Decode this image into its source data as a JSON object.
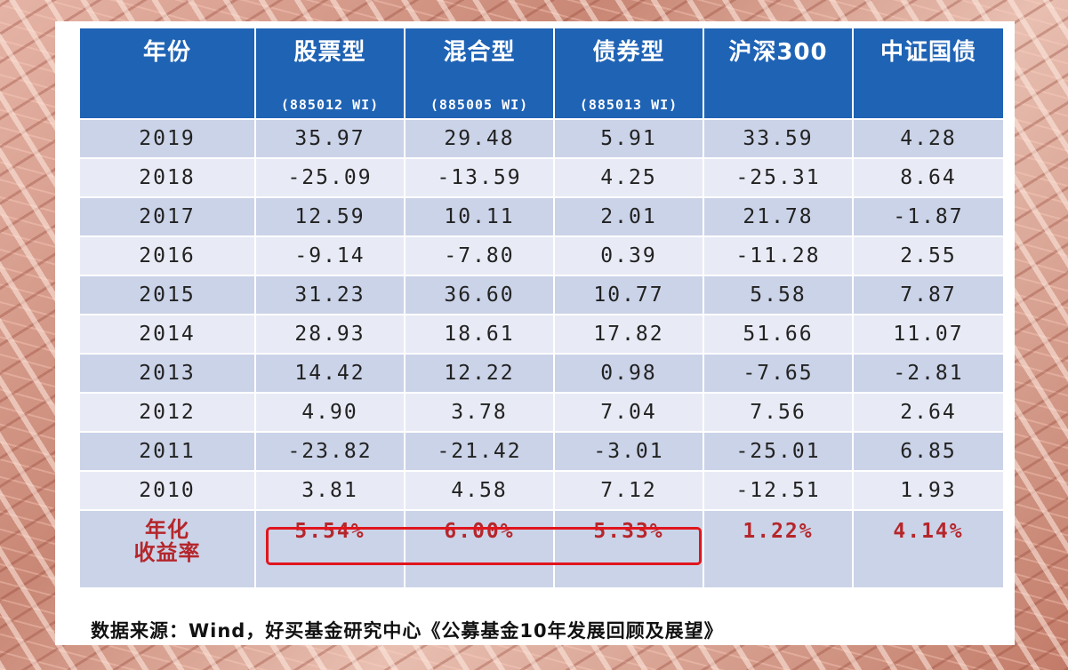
{
  "columns": [
    {
      "title": "年份",
      "code": ""
    },
    {
      "title": "股票型",
      "code": "(885012 WI)"
    },
    {
      "title": "混合型",
      "code": "(885005 WI)"
    },
    {
      "title": "债券型",
      "code": "(885013 WI)"
    },
    {
      "title": "沪深300",
      "code": ""
    },
    {
      "title": "中证国债",
      "code": ""
    }
  ],
  "rows": [
    [
      "2019",
      "35.97",
      "29.48",
      "5.91",
      "33.59",
      "4.28"
    ],
    [
      "2018",
      "-25.09",
      "-13.59",
      "4.25",
      "-25.31",
      "8.64"
    ],
    [
      "2017",
      "12.59",
      "10.11",
      "2.01",
      "21.78",
      "-1.87"
    ],
    [
      "2016",
      "-9.14",
      "-7.80",
      "0.39",
      "-11.28",
      "2.55"
    ],
    [
      "2015",
      "31.23",
      "36.60",
      "10.77",
      "5.58",
      "7.87"
    ],
    [
      "2014",
      "28.93",
      "18.61",
      "17.82",
      "51.66",
      "11.07"
    ],
    [
      "2013",
      "14.42",
      "12.22",
      "0.98",
      "-7.65",
      "-2.81"
    ],
    [
      "2012",
      "4.90",
      "3.78",
      "7.04",
      "7.56",
      "2.64"
    ],
    [
      "2011",
      "-23.82",
      "-21.42",
      "-3.01",
      "-25.01",
      "6.85"
    ],
    [
      "2010",
      "3.81",
      "4.58",
      "7.12",
      "-12.51",
      "1.93"
    ]
  ],
  "annualized": {
    "label_line1": "年化",
    "label_line2": "收益率",
    "values": [
      "5.54%",
      "6.00%",
      "5.33%",
      "1.22%",
      "4.14%"
    ]
  },
  "source": "数据来源：Wind，好买基金研究中心《公募基金10年发展回顾及展望》",
  "colors": {
    "header_bg": "#1f63b5",
    "row_dark": "#cbd3e8",
    "row_light": "#e8ebf5",
    "annual_text": "#b5262b",
    "highlight_border": "#e0161d"
  }
}
